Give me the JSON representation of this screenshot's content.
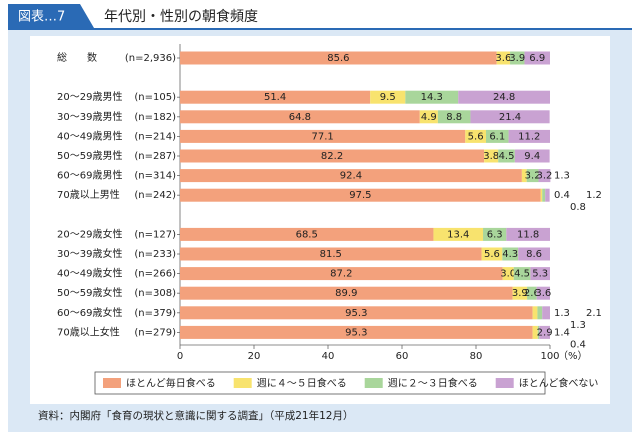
{
  "chart_data": {
    "type": "stacked-bar-horizontal",
    "figure_label": "図表…7",
    "title": "年代別・性別の朝食頻度",
    "source": "資料：内閣府「食育の現状と意識に関する調査」（平成21年12月）",
    "x_unit_label": "（%）",
    "categories": [
      "総　　数",
      null,
      "20～29歳男性",
      "30～39歳男性",
      "40～49歳男性",
      "50～59歳男性",
      "60～69歳男性",
      "70歳以上男性",
      null,
      "20～29歳女性",
      "30～39歳女性",
      "40～49歳女性",
      "50～59歳女性",
      "60～69歳女性",
      "70歳以上女性"
    ],
    "sample_sizes": [
      "(n=2,936)",
      null,
      "(n=105)",
      "(n=182)",
      "(n=214)",
      "(n=287)",
      "(n=314)",
      "(n=242)",
      null,
      "(n=127)",
      "(n=233)",
      "(n=266)",
      "(n=308)",
      "(n=379)",
      "(n=279)"
    ],
    "series": [
      {
        "name": "ほとんど毎日食べる",
        "color": "#f3a17c",
        "values": [
          85.6,
          null,
          51.4,
          64.8,
          77.1,
          82.2,
          92.4,
          97.5,
          null,
          68.5,
          81.5,
          87.2,
          89.9,
          95.3,
          95.3
        ]
      },
      {
        "name": "週に４～５日食べる",
        "color": "#f8e36e",
        "values": [
          3.6,
          null,
          9.5,
          4.9,
          5.6,
          3.8,
          1.3,
          0.4,
          null,
          13.4,
          5.6,
          3.0,
          3.9,
          1.3,
          1.4
        ],
        "value_labels": [
          "3.6",
          null,
          "9.5",
          "4.9",
          "5.6",
          "3.8",
          "1.3",
          "0.4",
          null,
          "13.4",
          "5.6",
          "3.0",
          "3.9",
          "1.3",
          "1.4"
        ]
      },
      {
        "name": "週に２～３日食べる",
        "color": "#a9d69b",
        "values": [
          3.9,
          null,
          14.3,
          8.8,
          6.1,
          4.5,
          3.2,
          0.8,
          null,
          6.3,
          4.3,
          4.5,
          2.6,
          1.3,
          0.4
        ]
      },
      {
        "name": "ほとんど食べない",
        "color": "#c9a2d2",
        "values": [
          6.9,
          null,
          24.8,
          21.4,
          11.2,
          9.4,
          3.2,
          1.2,
          null,
          11.8,
          8.6,
          5.3,
          3.6,
          2.1,
          2.9
        ]
      }
    ],
    "xlim": [
      0,
      100
    ],
    "xticks": [
      0,
      20,
      40,
      60,
      80,
      100
    ]
  }
}
